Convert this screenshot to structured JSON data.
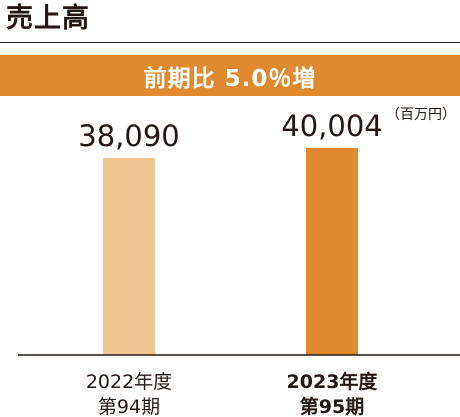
{
  "title": "売上高",
  "banner": {
    "text": "前期比 5.0％増"
  },
  "colors": {
    "accent": "#e08a30",
    "previous_bar": "#f0c48e",
    "current_bar": "#e08a30",
    "text": "#231815",
    "baseline": "#231815"
  },
  "chart_data": {
    "type": "bar",
    "unit": "（百万円）",
    "categories": [
      {
        "year": "2022年度",
        "period": "第94期"
      },
      {
        "year": "2023年度",
        "period": "第95期"
      }
    ],
    "values": [
      38090,
      40004
    ],
    "value_labels": [
      "38,090",
      "40,004"
    ],
    "highlight_index": 1,
    "ylim": [
      0,
      40004
    ]
  }
}
